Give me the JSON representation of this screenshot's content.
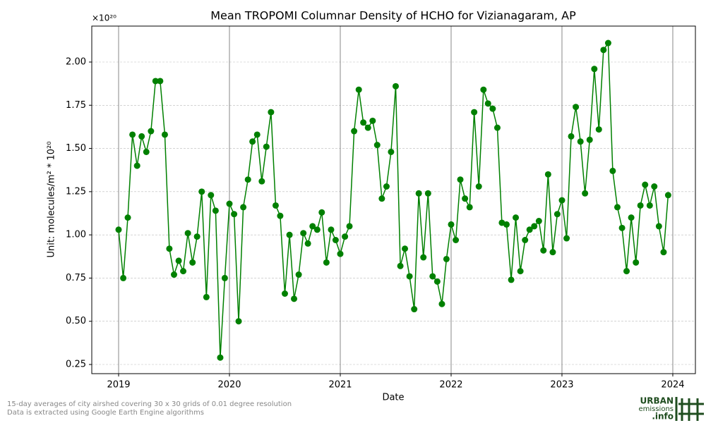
{
  "chart_data": {
    "type": "line",
    "title": "Mean TROPOMI Columnar Density of HCHO for Vizianagaram, AP",
    "x_label": "Date",
    "y_label": "Unit: molecules/m² * 10²⁰",
    "y_offset_label": "×10²⁰",
    "x": [
      2019,
      2019.042,
      2019.083,
      2019.125,
      2019.167,
      2019.208,
      2019.25,
      2019.292,
      2019.333,
      2019.375,
      2019.417,
      2019.458,
      2019.5,
      2019.542,
      2019.583,
      2019.625,
      2019.667,
      2019.708,
      2019.75,
      2019.792,
      2019.833,
      2019.875,
      2019.917,
      2019.958,
      2020,
      2020.042,
      2020.083,
      2020.125,
      2020.167,
      2020.208,
      2020.25,
      2020.292,
      2020.333,
      2020.375,
      2020.417,
      2020.458,
      2020.5,
      2020.542,
      2020.583,
      2020.625,
      2020.667,
      2020.708,
      2020.75,
      2020.792,
      2020.833,
      2020.875,
      2020.917,
      2020.958,
      2021,
      2021.042,
      2021.083,
      2021.125,
      2021.167,
      2021.208,
      2021.25,
      2021.292,
      2021.333,
      2021.375,
      2021.417,
      2021.458,
      2021.5,
      2021.542,
      2021.583,
      2021.625,
      2021.667,
      2021.708,
      2021.75,
      2021.792,
      2021.833,
      2021.875,
      2021.917,
      2021.958,
      2022,
      2022.042,
      2022.083,
      2022.125,
      2022.167,
      2022.208,
      2022.25,
      2022.292,
      2022.333,
      2022.375,
      2022.417,
      2022.458,
      2022.5,
      2022.542,
      2022.583,
      2022.625,
      2022.667,
      2022.708,
      2022.75,
      2022.792,
      2022.833,
      2022.875,
      2022.917,
      2022.958,
      2023,
      2023.042,
      2023.083,
      2023.125,
      2023.167,
      2023.208,
      2023.25,
      2023.292,
      2023.333,
      2023.375,
      2023.417,
      2023.458,
      2023.5,
      2023.542,
      2023.583,
      2023.625,
      2023.667,
      2023.708,
      2023.75,
      2023.792,
      2023.833,
      2023.875,
      2023.917,
      2023.958
    ],
    "series": [
      {
        "color": "#008000",
        "values": [
          1.03,
          0.75,
          1.1,
          1.58,
          1.4,
          1.57,
          1.48,
          1.6,
          1.89,
          1.89,
          1.58,
          0.92,
          0.77,
          0.85,
          0.79,
          1.01,
          0.84,
          0.99,
          1.25,
          0.64,
          1.23,
          1.14,
          0.29,
          0.75,
          1.18,
          1.12,
          0.5,
          1.16,
          1.32,
          1.54,
          1.58,
          1.31,
          1.51,
          1.71,
          1.17,
          1.11,
          0.66,
          1.0,
          0.63,
          0.77,
          1.01,
          0.95,
          1.05,
          1.03,
          1.13,
          0.84,
          1.03,
          0.97,
          0.89,
          0.99,
          1.05,
          1.6,
          1.84,
          1.65,
          1.62,
          1.66,
          1.52,
          1.21,
          1.28,
          1.48,
          1.86,
          0.82,
          0.92,
          0.76,
          0.57,
          1.24,
          0.87,
          1.24,
          0.76,
          0.73,
          0.6,
          0.86,
          1.06,
          0.97,
          1.32,
          1.21,
          1.16,
          1.71,
          1.28,
          1.84,
          1.76,
          1.73,
          1.62,
          1.07,
          1.06,
          0.74,
          1.1,
          0.79,
          0.97,
          1.03,
          1.05,
          1.08,
          0.91,
          1.35,
          0.9,
          1.12,
          1.2,
          0.98,
          1.57,
          1.74,
          1.54,
          1.24,
          1.55,
          1.96,
          1.61,
          2.07,
          2.11,
          1.37,
          1.16,
          1.04,
          0.79,
          1.1,
          0.84,
          1.17,
          1.29,
          1.17,
          1.28,
          1.05,
          0.9,
          1.23
        ]
      }
    ],
    "xlim": [
      2018.758,
      2024.204
    ],
    "xticks": [
      2019,
      2020,
      2021,
      2022,
      2023,
      2024
    ],
    "ylim": [
      0.197,
      2.208
    ],
    "yticks": [
      0.25,
      {
        "value": 0.5,
        "label": "0.50"
      },
      0.75,
      {
        "value": 1,
        "label": "1.00"
      },
      1.25,
      {
        "value": 1.5,
        "label": "1.50"
      },
      1.75,
      {
        "value": 2,
        "label": "2.00"
      }
    ],
    "grid": true
  },
  "footnotes": [
    "15-day averages of city airshed covering 30 x 30 grids of 0.01 degree resolution",
    "Data is extracted using Google Earth Engine algorithms"
  ],
  "logo": {
    "line1": "URBAN",
    "line2": "emissions",
    "line3": ".info"
  }
}
